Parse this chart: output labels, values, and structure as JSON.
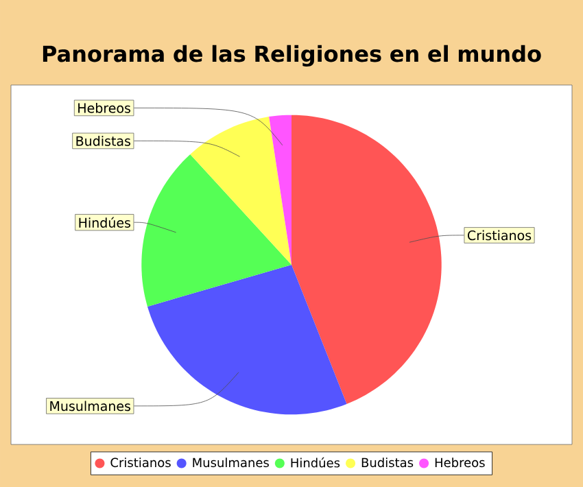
{
  "chart_data": {
    "type": "pie",
    "title": "Panorama de las Religiones en el mundo",
    "categories": [
      "Cristianos",
      "Musulmanes",
      "Hindúes",
      "Budistas",
      "Hebreos"
    ],
    "values": [
      44,
      26.5,
      17.7,
      9.4,
      2.4
    ],
    "colors": [
      "#ff5555",
      "#5555ff",
      "#55ff55",
      "#ffff55",
      "#ff55ff"
    ],
    "legend": "bottom"
  }
}
